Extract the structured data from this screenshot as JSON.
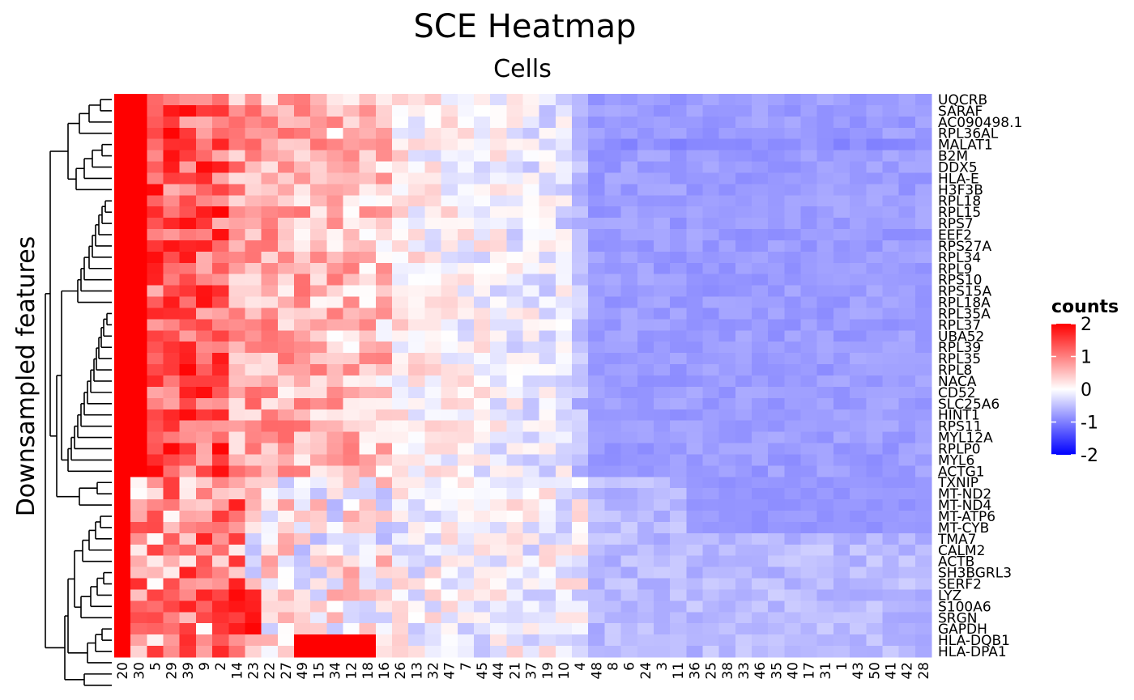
{
  "chart_data": {
    "type": "heatmap",
    "title": "SCE Heatmap",
    "column_title": "Cells",
    "row_title": "Downsampled features",
    "legend": {
      "title": "counts",
      "ticks": [
        2,
        1,
        0,
        -1,
        -2
      ],
      "range": [
        -2,
        2
      ],
      "placement": "right",
      "colors": {
        "high": "#ff0000",
        "mid": "#ffffff",
        "low": "#0000ff"
      }
    },
    "columns": [
      "20",
      "30",
      "5",
      "29",
      "39",
      "9",
      "2",
      "14",
      "23",
      "22",
      "27",
      "49",
      "15",
      "34",
      "12",
      "18",
      "16",
      "26",
      "13",
      "32",
      "47",
      "7",
      "45",
      "44",
      "21",
      "37",
      "19",
      "10",
      "4",
      "48",
      "8",
      "6",
      "24",
      "3",
      "11",
      "36",
      "25",
      "38",
      "33",
      "46",
      "35",
      "40",
      "17",
      "31",
      "1",
      "43",
      "50",
      "41",
      "42",
      "28"
    ],
    "rows": [
      "UQCRB",
      "SARAF",
      "AC090498.1",
      "RPL36AL",
      "MALAT1",
      "B2M",
      "DDX5",
      "HLA-E",
      "H3F3B",
      "RPL18",
      "RPL15",
      "RPS7",
      "EEF2",
      "RPS27A",
      "RPL34",
      "RPL9",
      "RPS10",
      "RPS15A",
      "RPL18A",
      "RPL35A",
      "RPL37",
      "UBA52",
      "RPL39",
      "RPL35",
      "RPL8",
      "NACA",
      "CD52",
      "SLC25A6",
      "HINT1",
      "RPS11",
      "MYL12A",
      "RPLP0",
      "MYL6",
      "ACTG1",
      "TXNIP",
      "MT-ND2",
      "MT-ND4",
      "MT-ATP6",
      "MT-CYB",
      "TMA7",
      "CALM2",
      "ACTB",
      "SH3BGRL3",
      "SERF2",
      "LYZ",
      "S100A6",
      "SRGN",
      "GAPDH",
      "HLA-DQB1",
      "HLA-DPA1"
    ]
  }
}
